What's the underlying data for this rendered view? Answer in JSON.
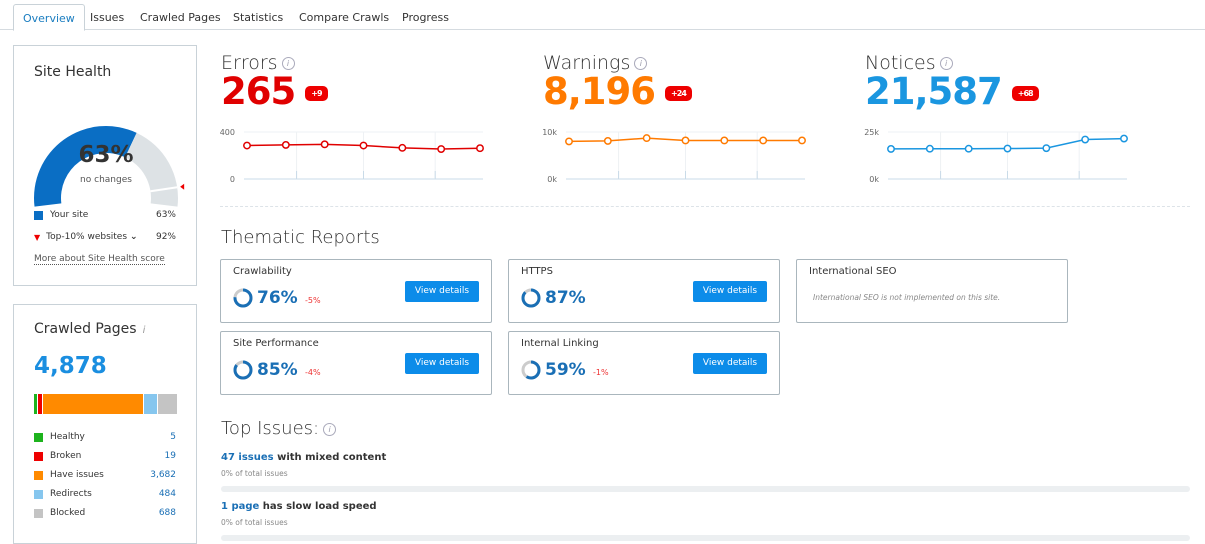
{
  "tabs": [
    "Overview",
    "Issues",
    "Crawled Pages",
    "Statistics",
    "Compare Crawls",
    "Progress"
  ],
  "site_health": {
    "title": "Site Health",
    "percent": "63%",
    "value": 63,
    "benchmark": 92,
    "status": "no changes",
    "your_site_label": "Your site",
    "your_site_value": "63%",
    "top_label": "Top-10% websites",
    "top_value": "92%",
    "link": "More about Site Health score",
    "colors": {
      "site": "#0a6ec4",
      "rest": "#dde2e5",
      "marker": "#e00"
    }
  },
  "crawled_pages": {
    "title": "Crawled Pages",
    "total": "4,878",
    "items": [
      {
        "label": "Healthy",
        "value": "5",
        "count": 5,
        "color": "#1db31d"
      },
      {
        "label": "Broken",
        "value": "19",
        "count": 19,
        "color": "#e00"
      },
      {
        "label": "Have issues",
        "value": "3,682",
        "count": 3682,
        "color": "#ff8a00"
      },
      {
        "label": "Redirects",
        "value": "484",
        "count": 484,
        "color": "#86c6ee"
      },
      {
        "label": "Blocked",
        "value": "688",
        "count": 688,
        "color": "#c4c4c4"
      }
    ]
  },
  "metrics": [
    {
      "label": "Errors",
      "value": "265",
      "delta": "+9",
      "color": "#e00000"
    },
    {
      "label": "Warnings",
      "value": "8,196",
      "delta": "+24",
      "color": "#ff7a00"
    },
    {
      "label": "Notices",
      "value": "21,587",
      "delta": "+68",
      "color": "#1a96e0"
    }
  ],
  "chart_data": [
    {
      "type": "line",
      "title": "Errors",
      "ylim": [
        0,
        400
      ],
      "ytick_labels": [
        "400",
        "0"
      ],
      "values": [
        285,
        290,
        295,
        285,
        265,
        255,
        262
      ],
      "color": "#e00000"
    },
    {
      "type": "line",
      "title": "Warnings",
      "ylim": [
        0,
        10000
      ],
      "ytick_labels": [
        "10k",
        "0k"
      ],
      "values": [
        8000,
        8100,
        8700,
        8200,
        8200,
        8200,
        8200
      ],
      "color": "#ff7a00"
    },
    {
      "type": "line",
      "title": "Notices",
      "ylim": [
        0,
        25000
      ],
      "ytick_labels": [
        "25k",
        "0k"
      ],
      "values": [
        16000,
        16100,
        16100,
        16200,
        16400,
        21000,
        21500
      ],
      "color": "#1a96e0"
    }
  ],
  "thematic": {
    "title": "Thematic Reports",
    "button": "View details",
    "cards": [
      {
        "title": "Crawlability",
        "percent": "76%",
        "value": 76,
        "change": "-5%"
      },
      {
        "title": "HTTPS",
        "percent": "87%",
        "value": 87,
        "change": ""
      },
      {
        "title": "International SEO",
        "note": "International SEO is not implemented on this site."
      },
      {
        "title": "Site Performance",
        "percent": "85%",
        "value": 85,
        "change": "-4%"
      },
      {
        "title": "Internal Linking",
        "percent": "59%",
        "value": 59,
        "change": "-1%"
      }
    ]
  },
  "top_issues": {
    "title": "Top Issues:",
    "items": [
      {
        "link": "47 issues",
        "text": " with mixed content",
        "sub": "0% of total issues",
        "progress": 0
      },
      {
        "link": "1 page",
        "text": " has slow load speed",
        "sub": "0% of total issues",
        "progress": 0
      }
    ]
  }
}
